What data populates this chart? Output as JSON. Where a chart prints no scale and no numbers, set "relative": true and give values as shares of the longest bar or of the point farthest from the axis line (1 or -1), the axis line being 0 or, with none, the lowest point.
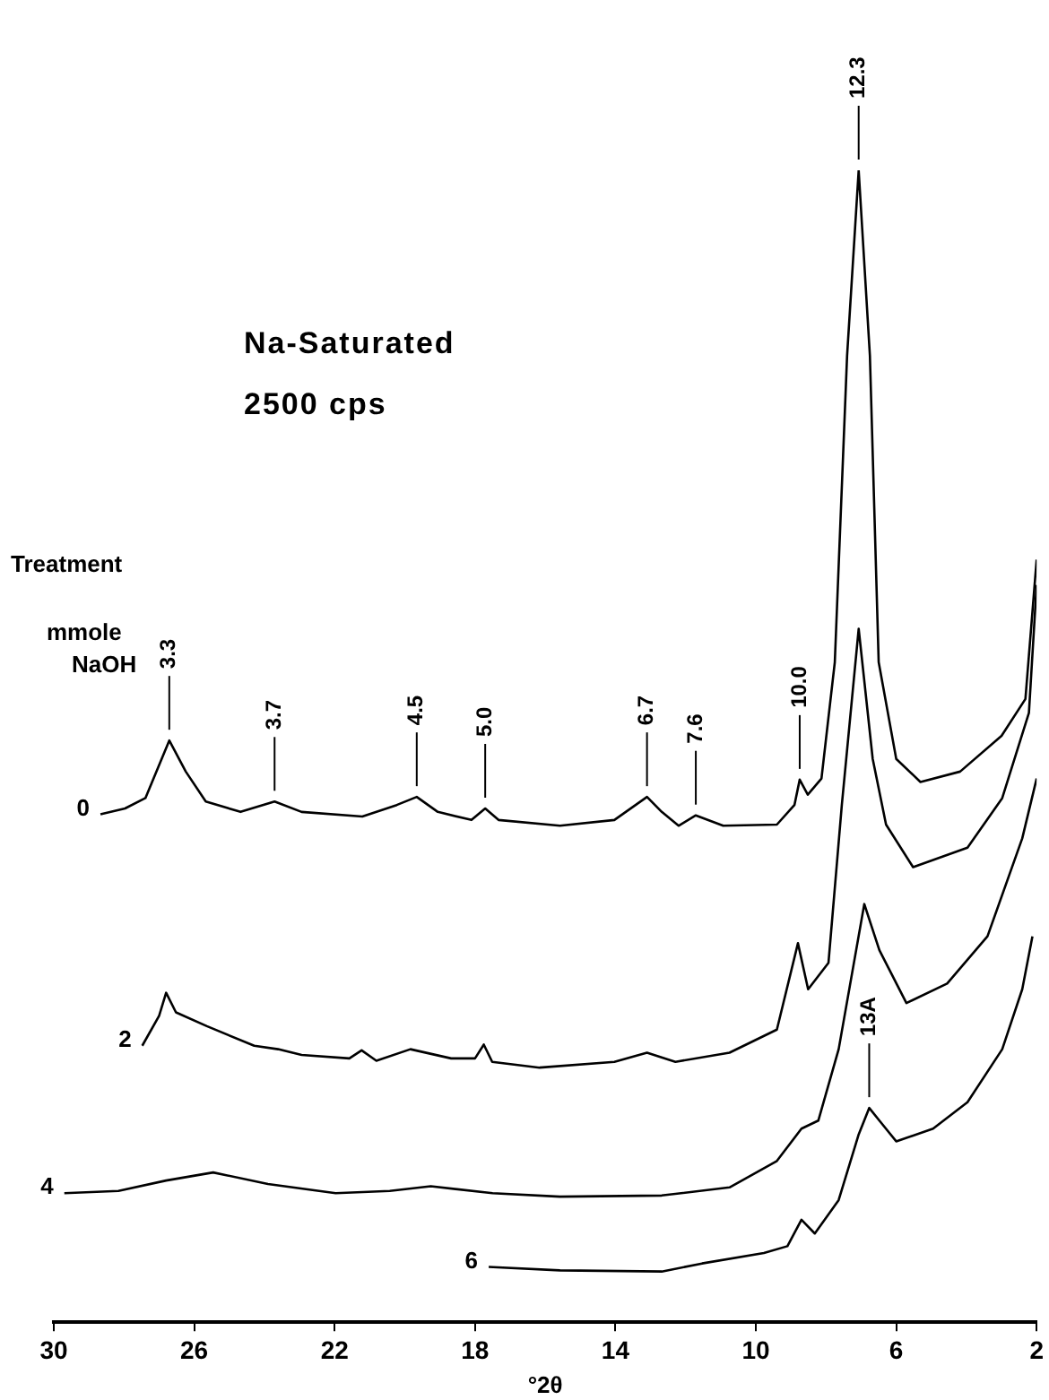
{
  "chart_data": {
    "type": "line",
    "title": "Na-Saturated",
    "subtitle": "2500 cps",
    "legend_title": "Treatment mmole NaOH",
    "xlabel": "°2θ",
    "relative": true,
    "xlim": [
      30,
      2
    ],
    "xticks": [
      30,
      26,
      22,
      18,
      14,
      10,
      6,
      2
    ],
    "grid": false,
    "legend": false,
    "marker": "none",
    "line_style": "solid",
    "series": [
      {
        "name": "0",
        "color": "#000000",
        "x": [
          28.67,
          27.97,
          27.39,
          26.71,
          26.24,
          25.67,
          24.68,
          23.71,
          22.94,
          21.21,
          20.23,
          19.66,
          19.06,
          18.1,
          17.71,
          17.33,
          15.58,
          14.03,
          13.1,
          12.68,
          12.2,
          11.71,
          10.93,
          9.4,
          8.9,
          8.75,
          8.52,
          8.13,
          7.75,
          7.4,
          7.07,
          6.75,
          6.5,
          6.0,
          5.31,
          4.18,
          3.0,
          2.32,
          2.0
        ],
        "values": [
          0.441,
          0.446,
          0.455,
          0.505,
          0.478,
          0.452,
          0.443,
          0.452,
          0.443,
          0.439,
          0.449,
          0.456,
          0.443,
          0.436,
          0.446,
          0.436,
          0.431,
          0.436,
          0.456,
          0.443,
          0.431,
          0.44,
          0.431,
          0.432,
          0.449,
          0.471,
          0.458,
          0.472,
          0.573,
          0.839,
          1.0,
          0.839,
          0.573,
          0.489,
          0.469,
          0.478,
          0.509,
          0.541,
          0.662
        ]
      },
      {
        "name": "2",
        "color": "#000000",
        "x": [
          27.48,
          27.0,
          26.8,
          26.52,
          25.64,
          24.29,
          23.61,
          22.94,
          21.58,
          21.23,
          20.81,
          19.84,
          18.68,
          18.0,
          17.75,
          17.51,
          16.16,
          14.03,
          13.1,
          12.29,
          10.75,
          9.4,
          8.8,
          8.51,
          7.93,
          7.55,
          7.07,
          6.67,
          6.29,
          5.52,
          3.97,
          2.98,
          2.22,
          2.0
        ],
        "values": [
          0.24,
          0.266,
          0.286,
          0.269,
          0.257,
          0.24,
          0.237,
          0.232,
          0.229,
          0.236,
          0.227,
          0.237,
          0.229,
          0.229,
          0.241,
          0.226,
          0.221,
          0.226,
          0.234,
          0.226,
          0.234,
          0.254,
          0.329,
          0.289,
          0.312,
          0.449,
          0.602,
          0.489,
          0.432,
          0.395,
          0.412,
          0.455,
          0.529,
          0.64
        ]
      },
      {
        "name": "4",
        "color": "#000000",
        "x": [
          29.7,
          28.16,
          26.8,
          25.46,
          23.9,
          21.97,
          20.43,
          19.26,
          17.5,
          15.58,
          12.68,
          10.75,
          9.4,
          8.7,
          8.22,
          7.64,
          6.91,
          6.48,
          5.71,
          4.55,
          3.4,
          2.41,
          2.0
        ],
        "values": [
          0.112,
          0.114,
          0.123,
          0.13,
          0.12,
          0.112,
          0.114,
          0.118,
          0.112,
          0.109,
          0.11,
          0.117,
          0.14,
          0.168,
          0.175,
          0.237,
          0.363,
          0.323,
          0.277,
          0.294,
          0.335,
          0.42,
          0.472
        ]
      },
      {
        "name": "6",
        "color": "#000000",
        "x": [
          17.61,
          15.58,
          12.68,
          11.53,
          9.77,
          9.1,
          8.7,
          8.32,
          7.64,
          7.07,
          6.77,
          6.48,
          6.0,
          4.95,
          3.97,
          2.98,
          2.41,
          2.12
        ],
        "values": [
          0.048,
          0.045,
          0.044,
          0.051,
          0.06,
          0.066,
          0.089,
          0.077,
          0.106,
          0.163,
          0.186,
          0.175,
          0.157,
          0.168,
          0.191,
          0.237,
          0.289,
          0.335
        ]
      }
    ],
    "annotations": [
      {
        "text": "3.3",
        "x": 26.71,
        "y": 0.505
      },
      {
        "text": "3.7",
        "x": 23.71,
        "y": 0.452
      },
      {
        "text": "4.5",
        "x": 19.66,
        "y": 0.456
      },
      {
        "text": "5.0",
        "x": 17.71,
        "y": 0.446
      },
      {
        "text": "6.7",
        "x": 13.1,
        "y": 0.456
      },
      {
        "text": "7.6",
        "x": 11.71,
        "y": 0.44
      },
      {
        "text": "10.0",
        "x": 8.75,
        "y": 0.471
      },
      {
        "text": "12.3",
        "x": 7.07,
        "y": 1.0
      },
      {
        "text": "13A",
        "x": 6.77,
        "y": 0.186
      }
    ]
  }
}
